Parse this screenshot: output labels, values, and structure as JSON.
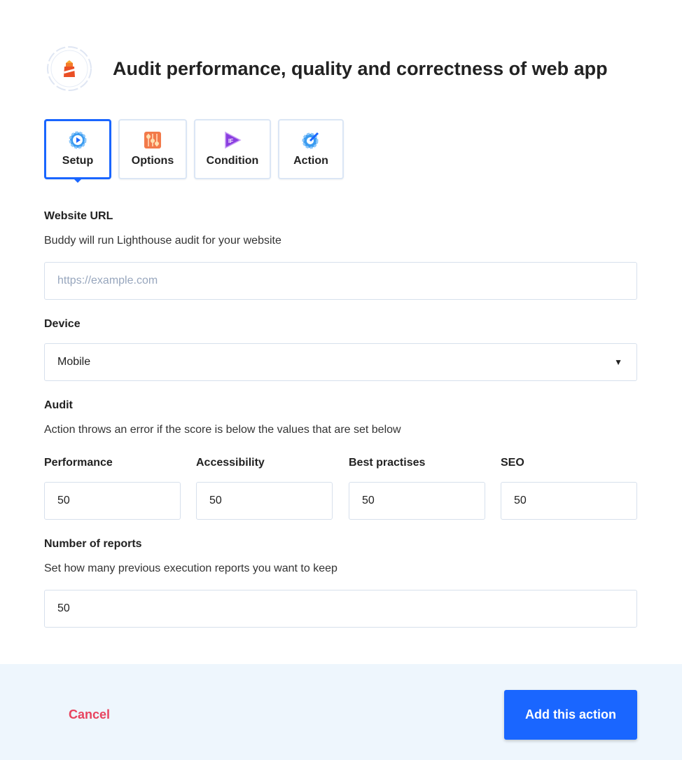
{
  "header": {
    "title": "Audit performance, quality and correctness of web app",
    "logo": "lighthouse-icon"
  },
  "tabs": [
    {
      "label": "Setup",
      "icon": "gear-play-icon",
      "active": true
    },
    {
      "label": "Options",
      "icon": "sliders-icon"
    },
    {
      "label": "Condition",
      "icon": "if-play-icon"
    },
    {
      "label": "Action",
      "icon": "gear-wrench-icon"
    }
  ],
  "url": {
    "label": "Website URL",
    "description": "Buddy will run Lighthouse audit for your website",
    "placeholder": "https://example.com",
    "value": ""
  },
  "device": {
    "label": "Device",
    "value": "Mobile"
  },
  "audit": {
    "label": "Audit",
    "description": "Action throws an error if the score is below the values that are set below",
    "fields": [
      {
        "label": "Performance",
        "value": "50"
      },
      {
        "label": "Accessibility",
        "value": "50"
      },
      {
        "label": "Best practises",
        "value": "50"
      },
      {
        "label": "SEO",
        "value": "50"
      }
    ]
  },
  "reports": {
    "label": "Number of reports",
    "description": "Set how many previous execution reports you want to keep",
    "value": "50"
  },
  "footer": {
    "cancel": "Cancel",
    "submit": "Add this action"
  },
  "colors": {
    "accent": "#1a66ff",
    "cancel": "#e8435e",
    "footer_bg": "#eef6fd"
  }
}
